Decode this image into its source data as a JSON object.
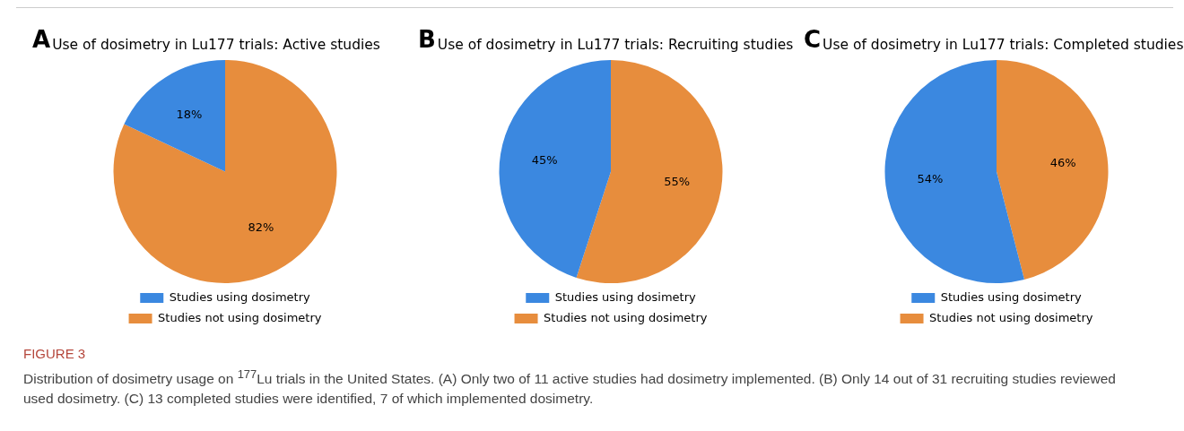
{
  "chart_data": [
    {
      "type": "pie",
      "title": "Use of dosimetry in Lu177 trials: Active studies",
      "annotations": [
        "A"
      ],
      "categories": [
        "Studies using dosimetry",
        "Studies not using dosimetry"
      ],
      "values": [
        18,
        82
      ],
      "value_labels": [
        "18%",
        "82%"
      ],
      "colors": [
        "#3b88e0",
        "#e78d3d"
      ],
      "legend": "bottom"
    },
    {
      "type": "pie",
      "title": "Use of dosimetry in Lu177 trials: Recruiting studies",
      "annotations": [
        "B"
      ],
      "categories": [
        "Studies using dosimetry",
        "Studies not using dosimetry"
      ],
      "values": [
        45,
        55
      ],
      "value_labels": [
        "45%",
        "55%"
      ],
      "colors": [
        "#3b88e0",
        "#e78d3d"
      ],
      "legend": "bottom"
    },
    {
      "type": "pie",
      "title": "Use of dosimetry in Lu177 trials: Completed studies",
      "annotations": [
        "C"
      ],
      "categories": [
        "Studies using dosimetry",
        "Studies not using dosimetry"
      ],
      "values": [
        54,
        46
      ],
      "value_labels": [
        "54%",
        "46%"
      ],
      "colors": [
        "#3b88e0",
        "#e78d3d"
      ],
      "legend": "bottom"
    },
    {
      "type": "other",
      "title": "FIGURE 3",
      "annotations": [
        "Distribution of dosimetry usage on $^{177}$Lu trials in the United States. (A) Only two of 11 active studies had dosimetry implemented. (B) Only 14 out of 31 recruiting studies reviewed used dosimetry. (C) 13 completed studies were identified, 7 of which implemented dosimetry."
      ]
    }
  ]
}
